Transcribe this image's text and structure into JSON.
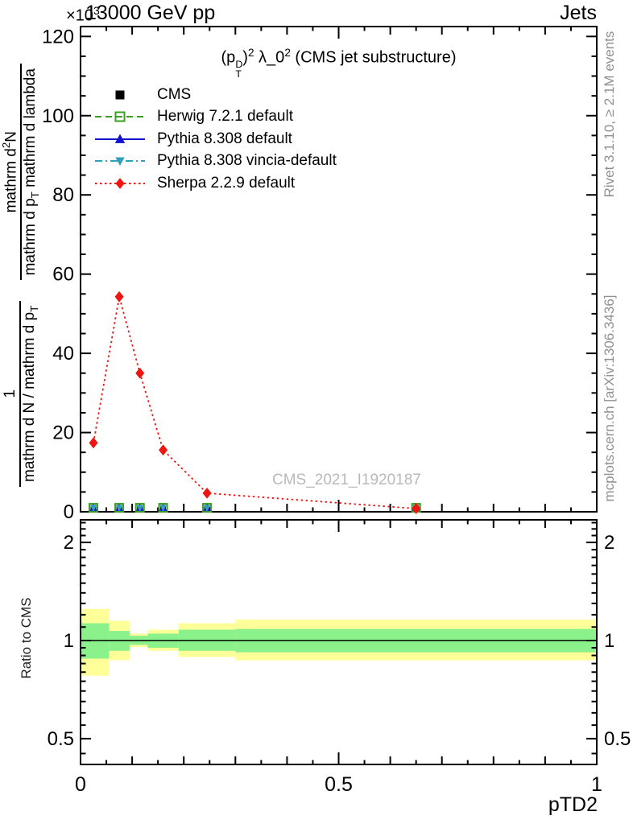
{
  "titles": {
    "energy": "13000 GeV pp",
    "category": "Jets",
    "multiplier_base": "×10",
    "multiplier_exp": "3",
    "observable": {
      "p1": "(p",
      "stack_top": "D",
      "stack_bottom": "T",
      "p2": ")",
      "sup2": "2",
      "p3": " λ_0",
      "sup3": "2",
      "p4": " (CMS jet substructure)"
    }
  },
  "ylabel": {
    "frac1": {
      "num": "1",
      "den_pre": "mathrm d N / mathrm d p",
      "den_sub": "T"
    },
    "frac2": {
      "num_pre": "mathrm d",
      "num_sup": "2",
      "num_post": "N",
      "den_pre": "mathrm d p",
      "den_sub": "T",
      "den_post": " mathrm d lambda"
    }
  },
  "watermark": "CMS_2021_I1920187",
  "credits": {
    "rivet": "Rivet 3.1.10, ≥ 2.1M events",
    "mcplots": "mcplots.cern.ch [arXiv:1306.3436]"
  },
  "ratio_label": "Ratio to CMS",
  "chart_data": {
    "type": "line",
    "title": "(p_T^D)^2 λ_0^2 (CMS jet substructure)",
    "top_left_title": "13000 GeV pp",
    "top_right_title": "Jets",
    "xlabel": "pTD2",
    "y_multiplier": "×10^3",
    "main": {
      "xlim": [
        0,
        1
      ],
      "ylim": [
        0,
        122.5
      ],
      "yticks_major": [
        0,
        20,
        40,
        60,
        80,
        100,
        120
      ],
      "ytick_minor_step": 5,
      "xticks_labeled": [
        0,
        0.5,
        1
      ],
      "xtick_minor_step": 0.05,
      "bin_centers": [
        0.025,
        0.075,
        0.115,
        0.16,
        0.245,
        0.65
      ],
      "series": [
        {
          "name": "CMS",
          "color": "#000000",
          "marker": "filled-square",
          "line": "none",
          "values": [
            1,
            1,
            1,
            1,
            1,
            1
          ]
        },
        {
          "name": "Herwig 7.2.1 default",
          "color": "#3aa020",
          "marker": "open-square",
          "line": "dashed",
          "values": [
            1,
            1,
            1,
            1,
            1,
            1
          ]
        },
        {
          "name": "Pythia 8.308 default",
          "color": "#1212cc",
          "marker": "triangle-up",
          "line": "solid",
          "values": [
            1,
            1,
            1,
            1,
            1,
            1
          ]
        },
        {
          "name": "Pythia 8.308 vincia-default",
          "color": "#2f9fbe",
          "marker": "triangle-down",
          "line": "dash-dot",
          "values": [
            1,
            1,
            1,
            1,
            1,
            1
          ]
        },
        {
          "name": "Sherpa 2.2.9 default",
          "color": "#ee1410",
          "marker": "diamond",
          "line": "dotted",
          "values": [
            17.4,
            54.3,
            35.0,
            15.6,
            4.7,
            0.8
          ]
        }
      ]
    },
    "ratio": {
      "ylabel": "Ratio to CMS",
      "scale": "log",
      "ylim": [
        0.42,
        2.35
      ],
      "yticks_labeled": [
        0.5,
        1,
        2
      ],
      "yticks_minor": [
        0.45,
        0.55,
        0.6,
        0.65,
        0.7,
        0.75,
        0.8,
        0.85,
        0.9,
        0.95,
        1.1,
        1.2,
        1.3,
        1.4,
        1.5,
        1.6,
        1.7,
        1.8,
        1.9,
        2.1,
        2.2,
        2.3
      ],
      "reference_line": 1,
      "bin_edges": [
        0,
        0.055,
        0.095,
        0.13,
        0.19,
        0.3,
        1
      ],
      "bands": [
        {
          "x0": 0,
          "x1": 0.055,
          "yellow": [
            0.78,
            1.25
          ],
          "green": [
            0.88,
            1.13
          ]
        },
        {
          "x0": 0.055,
          "x1": 0.095,
          "yellow": [
            0.87,
            1.15
          ],
          "green": [
            0.93,
            1.07
          ]
        },
        {
          "x0": 0.095,
          "x1": 0.13,
          "yellow": [
            0.955,
            1.05
          ],
          "green": [
            0.97,
            1.035
          ]
        },
        {
          "x0": 0.13,
          "x1": 0.19,
          "yellow": [
            0.93,
            1.08
          ],
          "green": [
            0.95,
            1.05
          ]
        },
        {
          "x0": 0.19,
          "x1": 0.3,
          "yellow": [
            0.89,
            1.13
          ],
          "green": [
            0.93,
            1.08
          ]
        },
        {
          "x0": 0.3,
          "x1": 1.0,
          "yellow": [
            0.87,
            1.16
          ],
          "green": [
            0.92,
            1.085
          ]
        }
      ],
      "band_colors": {
        "yellow": "#ffff99",
        "green": "#8bf18b"
      }
    }
  }
}
